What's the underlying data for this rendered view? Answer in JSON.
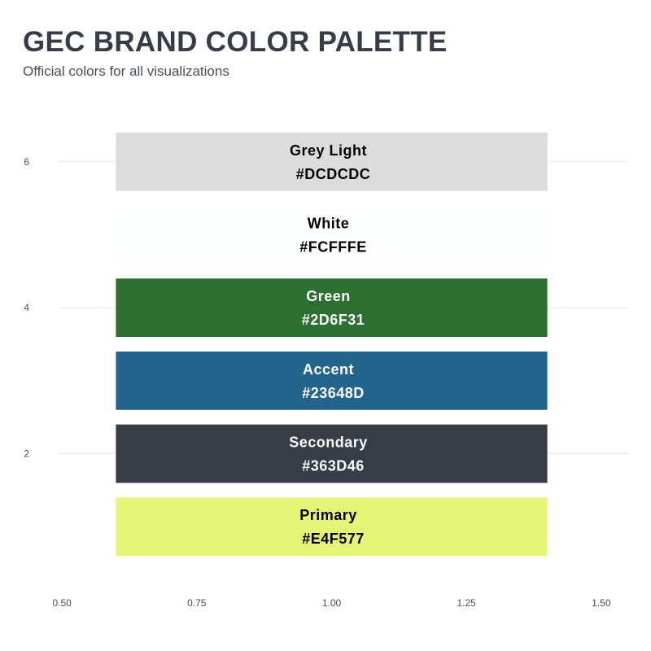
{
  "header": {
    "title": "GEC BRAND COLOR PALETTE",
    "subtitle": "Official colors for all visualizations"
  },
  "chart_data": {
    "type": "bar",
    "orientation": "horizontal",
    "title": "GEC BRAND COLOR PALETTE",
    "subtitle": "Official colors for all visualizations",
    "xlabel": "",
    "ylabel": "",
    "xlim": [
      0.45,
      1.55
    ],
    "ylim": [
      0.2,
      6.8
    ],
    "x_ticks": [
      "0.50",
      "0.75",
      "1.00",
      "1.25",
      "1.50"
    ],
    "y_ticks": [
      "2",
      "4",
      "6"
    ],
    "grid": "horizontal",
    "legend": "none",
    "bars": [
      {
        "name": "Primary",
        "hex": "#E4F577",
        "y": 1,
        "x_start": 0.6,
        "x_end": 1.4,
        "label_color": "#000000"
      },
      {
        "name": "Secondary",
        "hex": "#363D46",
        "y": 2,
        "x_start": 0.6,
        "x_end": 1.4,
        "label_color": "#ffffff"
      },
      {
        "name": "Accent",
        "hex": "#23648D",
        "y": 3,
        "x_start": 0.6,
        "x_end": 1.4,
        "label_color": "#ffffff"
      },
      {
        "name": "Green",
        "hex": "#2D6F31",
        "y": 4,
        "x_start": 0.6,
        "x_end": 1.4,
        "label_color": "#ffffff"
      },
      {
        "name": "White",
        "hex": "#FCFFFE",
        "y": 5,
        "x_start": 0.6,
        "x_end": 1.4,
        "label_color": "#000000"
      },
      {
        "name": "Grey Light",
        "hex": "#DCDCDC",
        "y": 6,
        "x_start": 0.6,
        "x_end": 1.4,
        "label_color": "#000000"
      }
    ]
  }
}
